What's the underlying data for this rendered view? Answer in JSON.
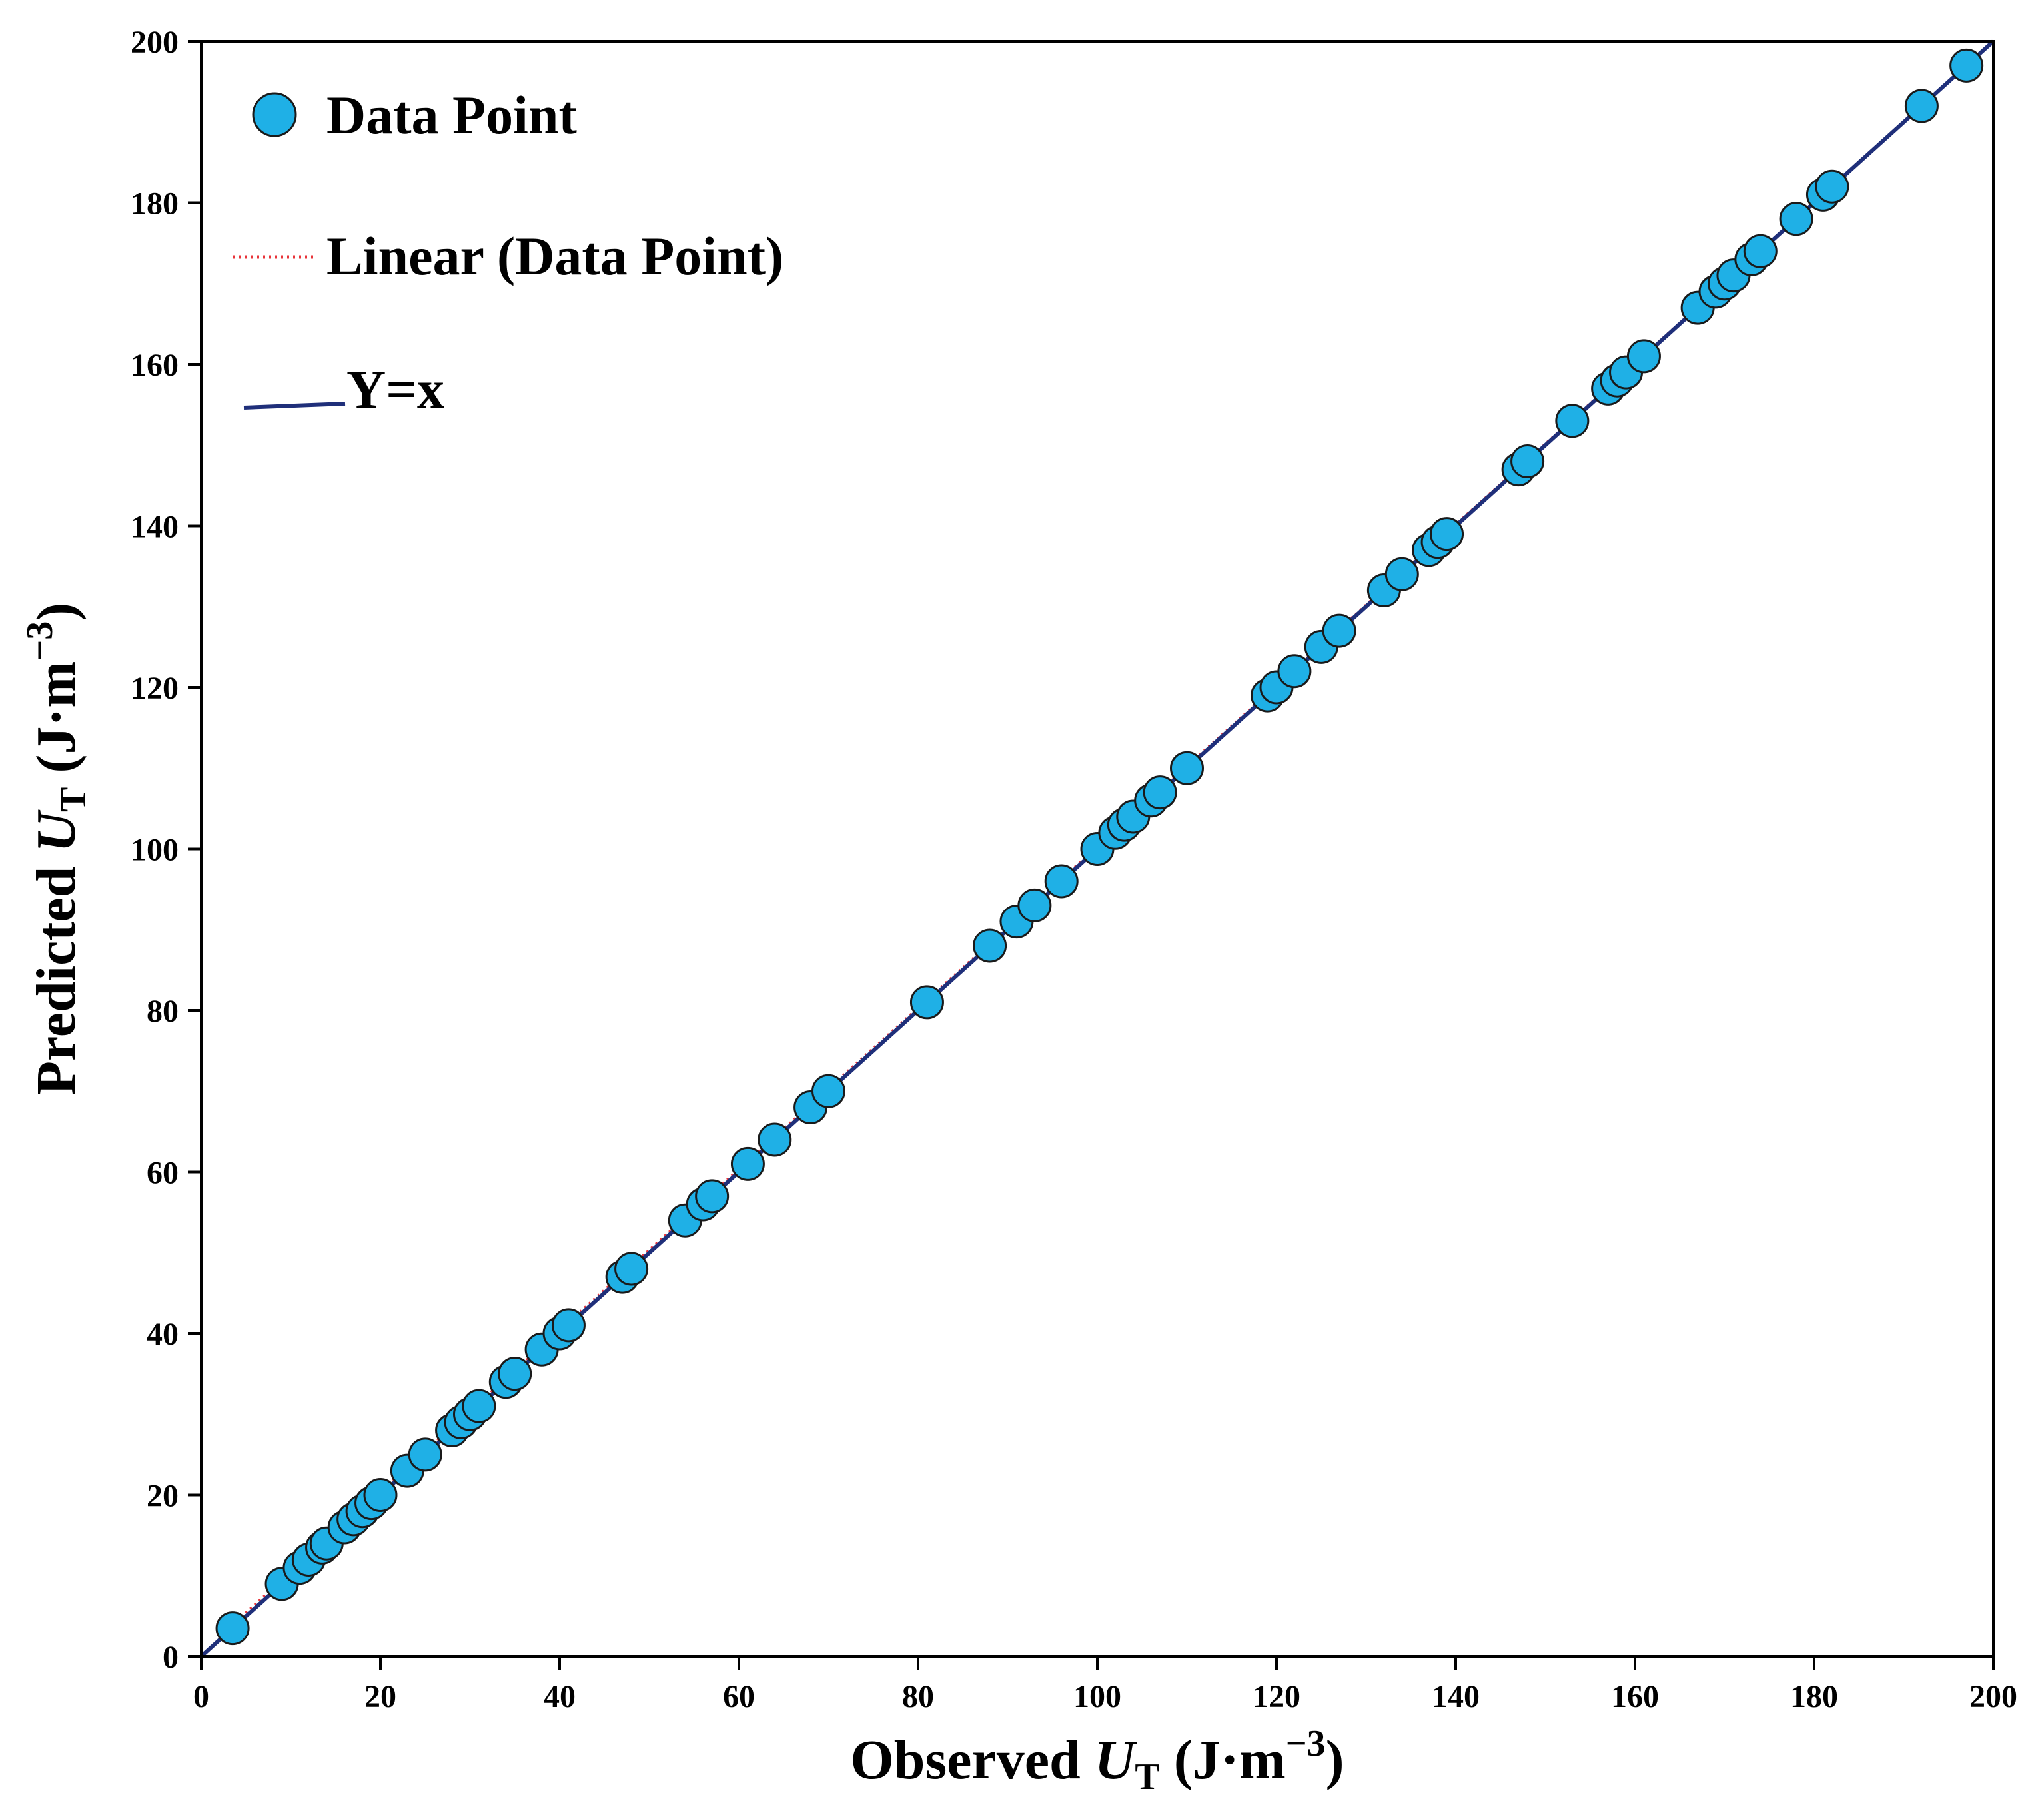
{
  "chart_data": {
    "type": "scatter",
    "title": "",
    "xlabel": {
      "prefix": "Observed ",
      "symbol": "U",
      "subscript": "T",
      "unit": " (J·m",
      "exponent": "−3",
      "close": ")"
    },
    "ylabel": {
      "prefix": "Predicted ",
      "symbol": "U",
      "subscript": "T",
      "unit": " (J·m",
      "exponent": "−3",
      "close": ")"
    },
    "xlim": [
      0,
      200
    ],
    "ylim": [
      0,
      200
    ],
    "xticks": [
      "0",
      "20",
      "40",
      "60",
      "80",
      "100",
      "120",
      "140",
      "160",
      "180",
      "200"
    ],
    "yticks": [
      "0",
      "20",
      "40",
      "60",
      "80",
      "100",
      "120",
      "140",
      "160",
      "180",
      "200"
    ],
    "grid": false,
    "legend_position": "top-left",
    "legend": {
      "data_point": "Data Point",
      "linear": "Linear (Data Point)",
      "identity": "Y=x"
    },
    "colors": {
      "marker_fill": "#1fb0e6",
      "marker_edge": "#1a1a1a",
      "identity_line": "#1f2f7a",
      "linear_fit": "#e8343a"
    },
    "linear_fit": {
      "slope": 0.998,
      "intercept": 0.4
    },
    "identity_line": {
      "x": [
        0,
        200
      ],
      "y": [
        0,
        200
      ]
    },
    "series": [
      {
        "x": [
          3.5,
          9,
          11,
          12,
          13.5,
          14,
          16,
          17,
          18,
          19,
          20,
          23,
          25,
          28,
          29,
          30,
          31,
          34,
          35,
          38,
          40,
          41,
          47,
          48,
          54,
          56,
          57,
          61,
          64,
          68,
          70,
          81,
          88,
          91,
          93,
          96,
          100,
          102,
          103,
          104,
          106,
          107,
          110,
          119,
          120,
          122,
          125,
          127,
          132,
          134,
          137,
          138,
          139,
          147,
          148,
          153,
          157,
          158,
          159,
          161,
          167,
          169,
          170,
          171,
          173,
          174,
          178,
          181,
          182,
          192,
          197
        ],
        "y": [
          3.5,
          9,
          11,
          12,
          13.5,
          14,
          16,
          17,
          18,
          19,
          20,
          23,
          25,
          28,
          29,
          30,
          31,
          34,
          35,
          38,
          40,
          41,
          47,
          48,
          54,
          56,
          57,
          61,
          64,
          68,
          70,
          81,
          88,
          91,
          93,
          96,
          100,
          102,
          103,
          104,
          106,
          107,
          110,
          119,
          120,
          122,
          125,
          127,
          132,
          134,
          137,
          138,
          139,
          147,
          148,
          153,
          157,
          158,
          159,
          161,
          167,
          169,
          170,
          171,
          173,
          174,
          178,
          181,
          182,
          192,
          197
        ]
      }
    ]
  }
}
